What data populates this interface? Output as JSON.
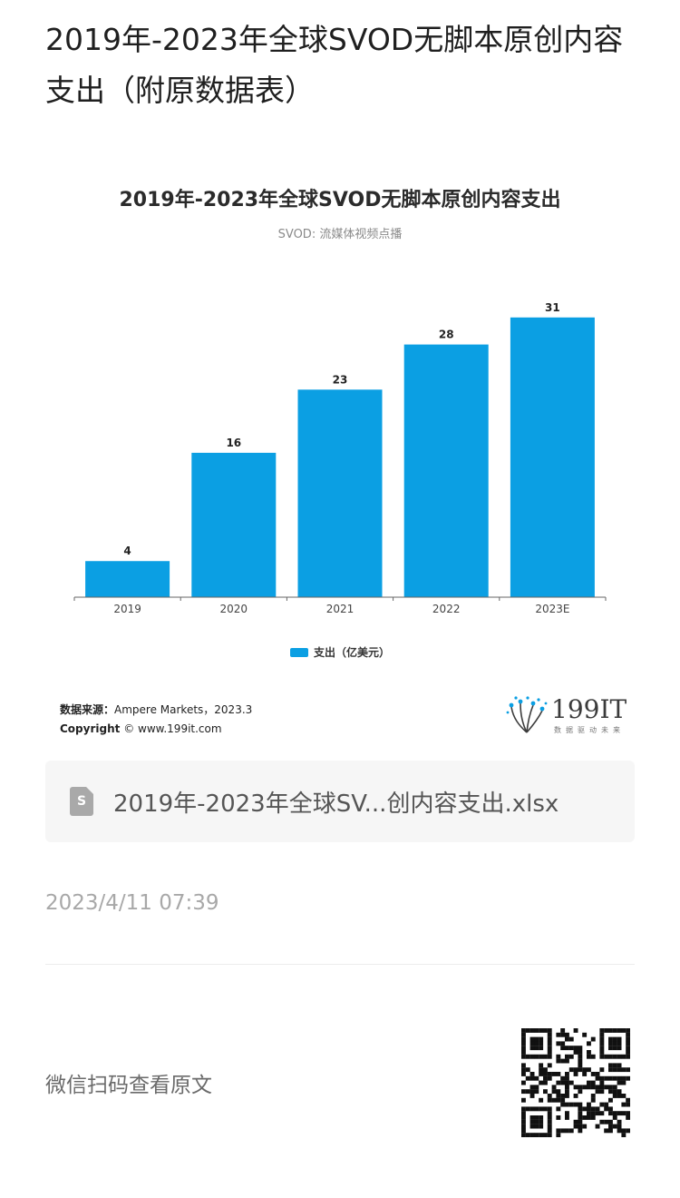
{
  "page": {
    "title": "2019年-2023年全球SVOD无脚本原创内容支出（附原数据表）",
    "file_name": "2019年-2023年全球SV...创内容支出.xlsx",
    "file_icon": "spreadsheet-file-icon",
    "file_icon_letter": "S",
    "timestamp": "2023/4/11 07:39",
    "qr_caption": "微信扫码查看原文"
  },
  "chart_data": {
    "type": "bar",
    "title": "2019年-2023年全球SVOD无脚本原创内容支出",
    "subtitle": "SVOD: 流媒体视频点播",
    "categories": [
      "2019",
      "2020",
      "2021",
      "2022",
      "2023E"
    ],
    "series": [
      {
        "name": "支出（亿美元）",
        "values": [
          4,
          16,
          23,
          28,
          31
        ],
        "color": "#0b9fe3"
      }
    ],
    "ylim": [
      0,
      35
    ],
    "grid": false,
    "data_labels": true,
    "legend_position": "bottom"
  },
  "source": {
    "label": "数据来源：",
    "text": "Ampere Markets，2023.3",
    "copyright_label": "Copyright",
    "copyright_text": "© www.199it.com"
  },
  "logo": {
    "text": "199IT",
    "slogan": "数据驱动未来"
  }
}
